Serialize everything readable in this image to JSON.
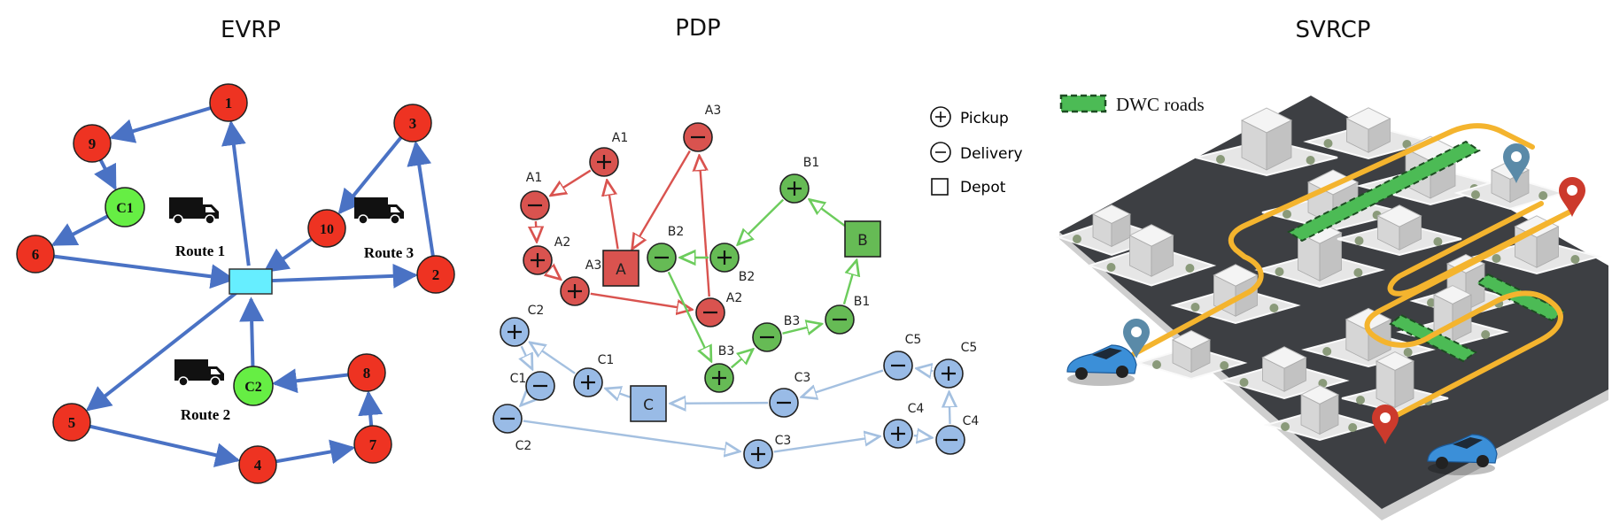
{
  "panels": [
    {
      "id": "evrp",
      "title": "EVRP"
    },
    {
      "id": "pdp",
      "title": "PDP"
    },
    {
      "id": "svrcp",
      "title": "SVRCP"
    }
  ],
  "evrp": {
    "colors": {
      "customer": "#ee3322",
      "charger": "#66ee44",
      "depot": "#66eeff",
      "edge": "#4a72c4"
    },
    "depot": {
      "id": "depot",
      "label": ""
    },
    "nodes": [
      {
        "id": "1",
        "label": "1",
        "kind": "customer"
      },
      {
        "id": "2",
        "label": "2",
        "kind": "customer"
      },
      {
        "id": "3",
        "label": "3",
        "kind": "customer"
      },
      {
        "id": "4",
        "label": "4",
        "kind": "customer"
      },
      {
        "id": "5",
        "label": "5",
        "kind": "customer"
      },
      {
        "id": "6",
        "label": "6",
        "kind": "customer"
      },
      {
        "id": "7",
        "label": "7",
        "kind": "customer"
      },
      {
        "id": "8",
        "label": "8",
        "kind": "customer"
      },
      {
        "id": "9",
        "label": "9",
        "kind": "customer"
      },
      {
        "id": "10",
        "label": "10",
        "kind": "customer"
      },
      {
        "id": "C1",
        "label": "C1",
        "kind": "charger"
      },
      {
        "id": "C2",
        "label": "C2",
        "kind": "charger"
      }
    ],
    "edges": [
      [
        "depot",
        "1"
      ],
      [
        "1",
        "9"
      ],
      [
        "9",
        "C1"
      ],
      [
        "C1",
        "6"
      ],
      [
        "6",
        "depot"
      ],
      [
        "depot",
        "2"
      ],
      [
        "2",
        "3"
      ],
      [
        "3",
        "10"
      ],
      [
        "10",
        "depot"
      ],
      [
        "depot",
        "5"
      ],
      [
        "5",
        "4"
      ],
      [
        "4",
        "7"
      ],
      [
        "7",
        "8"
      ],
      [
        "8",
        "C2"
      ],
      [
        "C2",
        "depot"
      ]
    ],
    "routes": [
      {
        "id": "route1",
        "label": "Route 1"
      },
      {
        "id": "route2",
        "label": "Route 2"
      },
      {
        "id": "route3",
        "label": "Route 3"
      }
    ]
  },
  "pdp": {
    "legend": [
      {
        "id": "pickup",
        "symbol": "+",
        "label": "Pickup"
      },
      {
        "id": "delivery",
        "symbol": "−",
        "label": "Delivery"
      },
      {
        "id": "depot",
        "symbol": "square",
        "label": "Depot"
      }
    ],
    "groups": [
      {
        "id": "A",
        "fill": "#d9534f",
        "stroke": "#d9534f"
      },
      {
        "id": "B",
        "fill": "#66bb55",
        "stroke": "#6ccc5c"
      },
      {
        "id": "C",
        "fill": "#99bbe6",
        "stroke": "#a4c0e0"
      }
    ],
    "depots": [
      {
        "id": "dA",
        "group": "A",
        "label": "A"
      },
      {
        "id": "dB",
        "group": "B",
        "label": "B"
      },
      {
        "id": "dC",
        "group": "C",
        "label": "C"
      }
    ],
    "nodes": [
      {
        "id": "A1p",
        "group": "A",
        "sym": "+",
        "label": "A1"
      },
      {
        "id": "A1d",
        "group": "A",
        "sym": "−",
        "label": "A1"
      },
      {
        "id": "A2p",
        "group": "A",
        "sym": "+",
        "label": "A2"
      },
      {
        "id": "A3p",
        "group": "A",
        "sym": "+",
        "label": "A3"
      },
      {
        "id": "A2d",
        "group": "A",
        "sym": "−",
        "label": "A2"
      },
      {
        "id": "A3d",
        "group": "A",
        "sym": "−",
        "label": "A3"
      },
      {
        "id": "B1p",
        "group": "B",
        "sym": "+",
        "label": "B1"
      },
      {
        "id": "B2p",
        "group": "B",
        "sym": "+",
        "label": "B2"
      },
      {
        "id": "B2d",
        "group": "B",
        "sym": "−",
        "label": "B2"
      },
      {
        "id": "B3p",
        "group": "B",
        "sym": "+",
        "label": "B3"
      },
      {
        "id": "B3d",
        "group": "B",
        "sym": "−",
        "label": "B3"
      },
      {
        "id": "B1d",
        "group": "B",
        "sym": "−",
        "label": "B1"
      },
      {
        "id": "C2p",
        "group": "C",
        "sym": "+",
        "label": "C2"
      },
      {
        "id": "C1d",
        "group": "C",
        "sym": "−",
        "label": "C1"
      },
      {
        "id": "C2d",
        "group": "C",
        "sym": "−",
        "label": "C2"
      },
      {
        "id": "C1p",
        "group": "C",
        "sym": "+",
        "label": "C1"
      },
      {
        "id": "C3d",
        "group": "C",
        "sym": "−",
        "label": "C3"
      },
      {
        "id": "C3p",
        "group": "C",
        "sym": "+",
        "label": "C3"
      },
      {
        "id": "C4p",
        "group": "C",
        "sym": "+",
        "label": "C4"
      },
      {
        "id": "C4d",
        "group": "C",
        "sym": "−",
        "label": "C4"
      },
      {
        "id": "C5p",
        "group": "C",
        "sym": "+",
        "label": "C5"
      },
      {
        "id": "C5d",
        "group": "C",
        "sym": "−",
        "label": "C5"
      }
    ],
    "edges": [
      [
        "dA",
        "A1p"
      ],
      [
        "A1p",
        "A1d"
      ],
      [
        "A1d",
        "A2p"
      ],
      [
        "A2p",
        "A3p"
      ],
      [
        "A3p",
        "A2d"
      ],
      [
        "A2d",
        "A3d"
      ],
      [
        "A3d",
        "dA"
      ],
      [
        "dB",
        "B1p"
      ],
      [
        "B1p",
        "B2p"
      ],
      [
        "B2p",
        "B2d"
      ],
      [
        "B2d",
        "B3p"
      ],
      [
        "B3p",
        "B3d"
      ],
      [
        "B3d",
        "B1d"
      ],
      [
        "B1d",
        "dB"
      ],
      [
        "dC",
        "C1p"
      ],
      [
        "C1p",
        "C2p"
      ],
      [
        "C2p",
        "C1d"
      ],
      [
        "C1d",
        "C2d"
      ],
      [
        "C2d",
        "C3p"
      ],
      [
        "C3p",
        "C4p"
      ],
      [
        "C4p",
        "C4d"
      ],
      [
        "C4d",
        "C5p"
      ],
      [
        "C5p",
        "C5d"
      ],
      [
        "C5d",
        "C3d"
      ],
      [
        "C3d",
        "dC"
      ]
    ]
  },
  "svrcp": {
    "legend_label": "DWC roads",
    "colors": {
      "dwc": "#4cbb55",
      "route": "#f4b42e",
      "pin_blue": "#5a8aa8",
      "pin_red": "#cc3a2c",
      "car": "#3b8fd8",
      "road": "#3d3f43",
      "block": "#e6e6e6"
    }
  }
}
